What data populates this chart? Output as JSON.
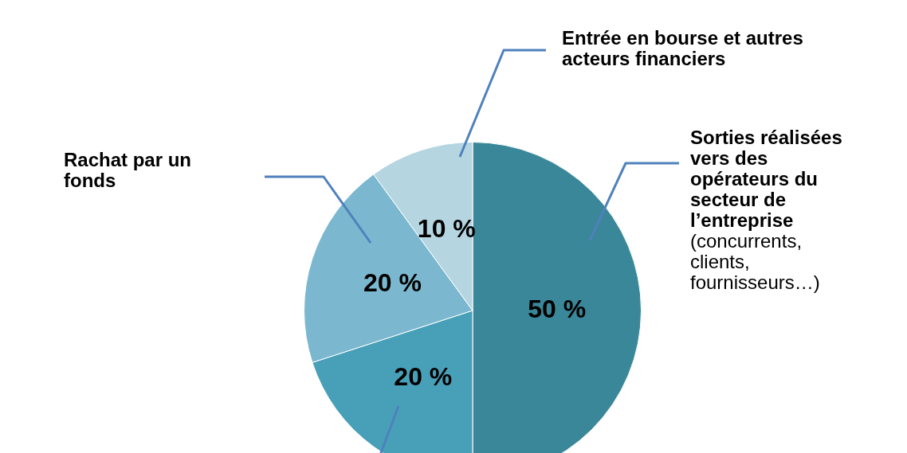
{
  "chart_data": {
    "type": "pie",
    "categories": [
      "Sorties réalisées vers des opérateurs du secteur de l’entreprise (concurrents, clients, fournisseurs…)",
      null,
      "Rachat par un fonds",
      "Entrée en bourse et autres acteurs financiers"
    ],
    "values": [
      50,
      20,
      20,
      10
    ],
    "value_labels": [
      "50 %",
      "20 %",
      "20 %",
      "10 %"
    ],
    "colors": [
      "#3a8799",
      "#48a0b8",
      "#7bb8cf",
      "#b5d5e1"
    ],
    "legend": false
  }
}
